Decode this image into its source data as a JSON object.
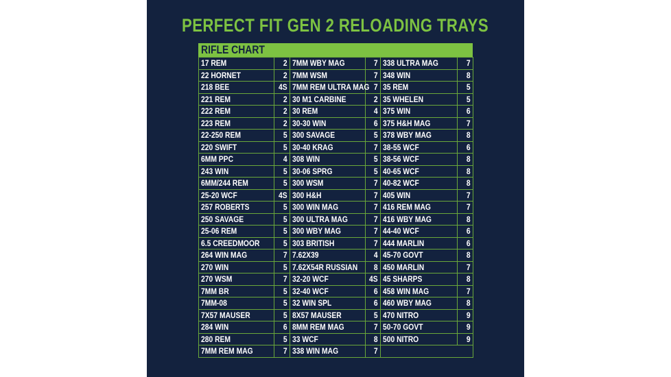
{
  "title": "PERFECT FIT GEN 2 RELOADING TRAYS",
  "chart_title": "RIFLE CHART",
  "colors": {
    "background": "#13223e",
    "accent": "#7dc242",
    "text": "#ffffff"
  },
  "columns": [
    [
      [
        "17 REM",
        "2"
      ],
      [
        "22 HORNET",
        "2"
      ],
      [
        "218 BEE",
        "4S"
      ],
      [
        "221 REM",
        "2"
      ],
      [
        "222 REM",
        "2"
      ],
      [
        "223 REM",
        "2"
      ],
      [
        "22-250 REM",
        "5"
      ],
      [
        "220 SWIFT",
        "5"
      ],
      [
        "6MM PPC",
        "4"
      ],
      [
        "243 WIN",
        "5"
      ],
      [
        "6MM/244 REM",
        "5"
      ],
      [
        "25-20 WCF",
        "4S"
      ],
      [
        "257 ROBERTS",
        "5"
      ],
      [
        "250 SAVAGE",
        "5"
      ],
      [
        "25-06 REM",
        "5"
      ],
      [
        "6.5 CREEDMOOR",
        "5"
      ],
      [
        "264 WIN MAG",
        "7"
      ],
      [
        "270 WIN",
        "5"
      ],
      [
        "270 WSM",
        "7"
      ],
      [
        "7MM BR",
        "5"
      ],
      [
        "7MM-08",
        "5"
      ],
      [
        "7X57 MAUSER",
        "5"
      ],
      [
        "284 WIN",
        "6"
      ],
      [
        "280 REM",
        "5"
      ],
      [
        "7MM REM MAG",
        "7"
      ]
    ],
    [
      [
        "7MM WBY MAG",
        "7"
      ],
      [
        "7MM WSM",
        "7"
      ],
      [
        "7MM REM ULTRA MAG",
        "7"
      ],
      [
        "30 M1 CARBINE",
        "2"
      ],
      [
        "30 REM",
        "4"
      ],
      [
        "30-30 WIN",
        "6"
      ],
      [
        "300 SAVAGE",
        "5"
      ],
      [
        "30-40 KRAG",
        "7"
      ],
      [
        "308 WIN",
        "5"
      ],
      [
        "30-06 SPRG",
        "5"
      ],
      [
        "300 WSM",
        "7"
      ],
      [
        "300 H&H",
        "7"
      ],
      [
        "300 WIN MAG",
        "7"
      ],
      [
        "300 ULTRA MAG",
        "7"
      ],
      [
        "300 WBY MAG",
        "7"
      ],
      [
        "303 BRITISH",
        "7"
      ],
      [
        "7.62X39",
        "4"
      ],
      [
        "7.62X54R RUSSIAN",
        "8"
      ],
      [
        "32-20 WCF",
        "4S"
      ],
      [
        "32-40 WCF",
        "6"
      ],
      [
        "32 WIN SPL",
        "6"
      ],
      [
        "8X57 MAUSER",
        "5"
      ],
      [
        "8MM REM MAG",
        "7"
      ],
      [
        "33 WCF",
        "8"
      ],
      [
        "338 WIN MAG",
        "7"
      ]
    ],
    [
      [
        "338 ULTRA MAG",
        "7"
      ],
      [
        "348 WIN",
        "8"
      ],
      [
        "35 REM",
        "5"
      ],
      [
        "35 WHELEN",
        "5"
      ],
      [
        "375 WIN",
        "6"
      ],
      [
        "375 H&H MAG",
        "7"
      ],
      [
        "378 WBY MAG",
        "8"
      ],
      [
        "38-55 WCF",
        "6"
      ],
      [
        "38-56 WCF",
        "8"
      ],
      [
        "40-65 WCF",
        "8"
      ],
      [
        "40-82 WCF",
        "8"
      ],
      [
        "405 WIN",
        "7"
      ],
      [
        "416 REM MAG",
        "7"
      ],
      [
        "416 WBY MAG",
        "8"
      ],
      [
        "44-40 WCF",
        "6"
      ],
      [
        "444 MARLIN",
        "6"
      ],
      [
        "45-70 GOVT",
        "8"
      ],
      [
        "450 MARLIN",
        "7"
      ],
      [
        "45 SHARPS",
        "8"
      ],
      [
        "458 WIN MAG",
        "7"
      ],
      [
        "460 WBY MAG",
        "8"
      ],
      [
        "470 NITRO",
        "9"
      ],
      [
        "50-70 GOVT",
        "9"
      ],
      [
        "500 NITRO",
        "9"
      ]
    ]
  ]
}
